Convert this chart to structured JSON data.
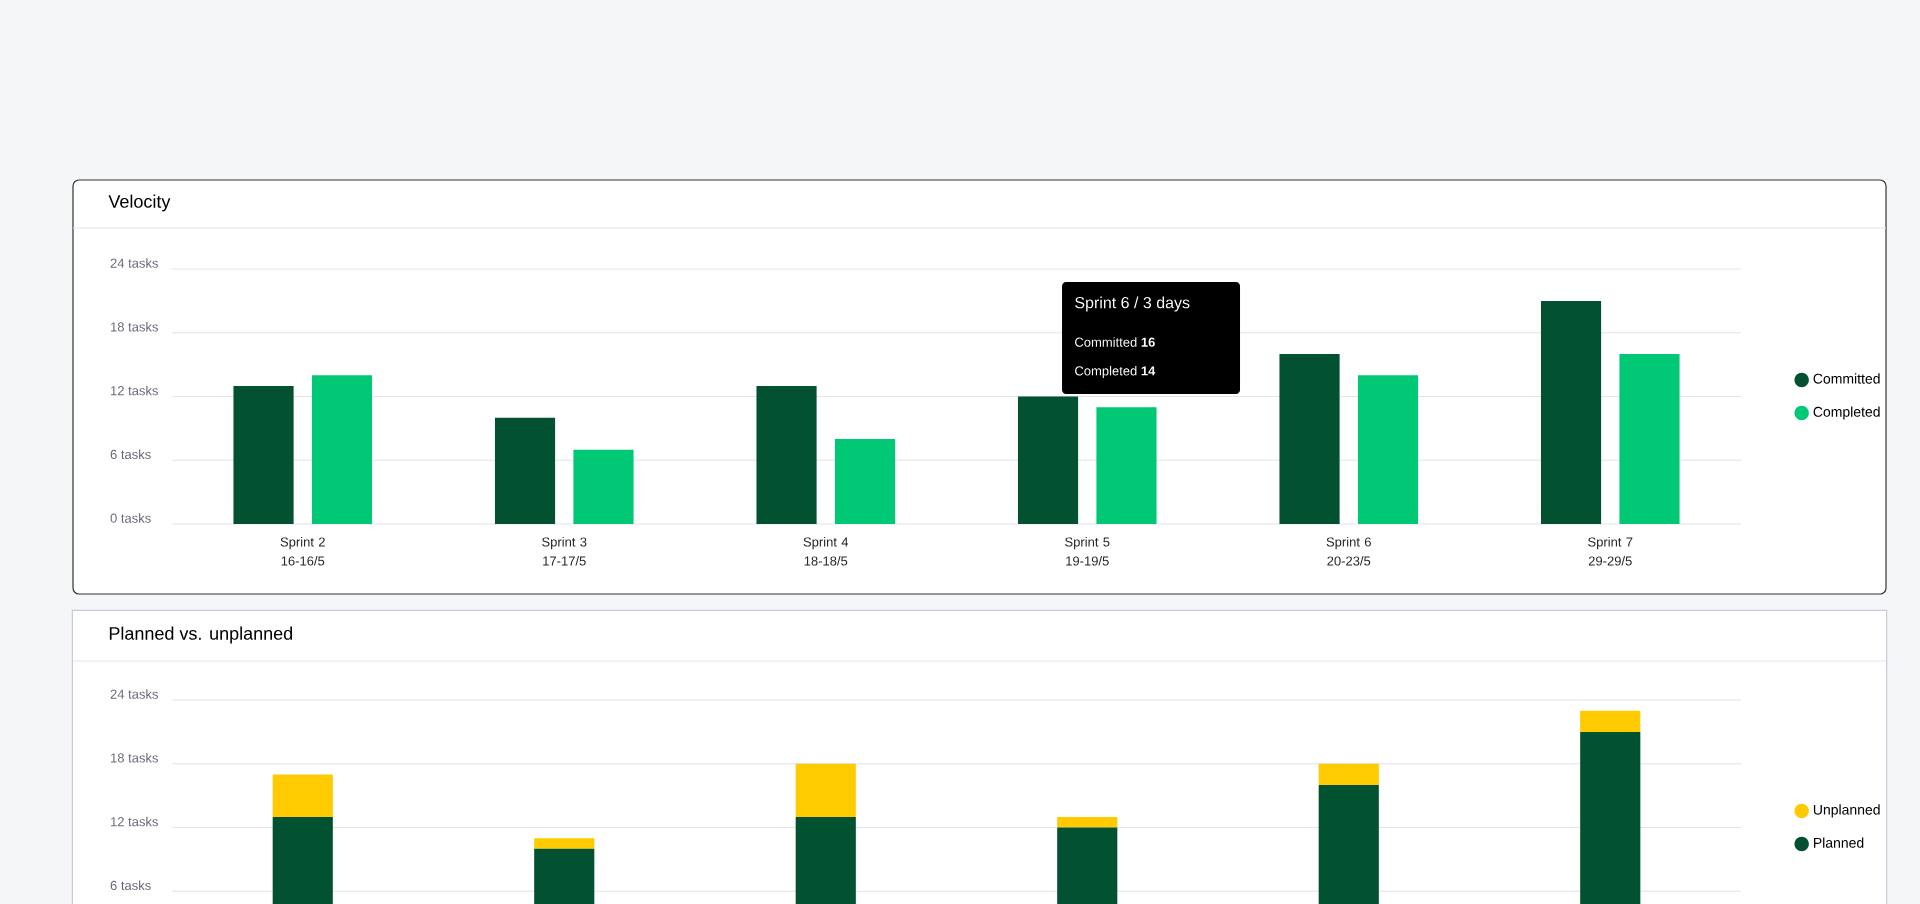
{
  "chart_data": [
    {
      "type": "bar",
      "title": "Velocity",
      "categories": [
        "Sprint 2 16-16/5",
        "Sprint 3 17-17/5",
        "Sprint 4 18-18/5",
        "Sprint 5 19-19/5",
        "Sprint 6 20-23/5",
        "Sprint 7 29-29/5"
      ],
      "series": [
        {
          "name": "Committed",
          "color": "#025231",
          "values": [
            13,
            10,
            13,
            12,
            16,
            21
          ]
        },
        {
          "name": "Completed",
          "color": "#00c875",
          "values": [
            14,
            7,
            8,
            11,
            14,
            16
          ]
        }
      ],
      "ylim": [
        0,
        24
      ],
      "yticks": [
        {
          "value": 0,
          "label": "0 tasks"
        },
        {
          "value": 6,
          "label": "6 tasks"
        },
        {
          "value": 12,
          "label": "12 tasks"
        },
        {
          "value": 18,
          "label": "18 tasks"
        },
        {
          "value": 24,
          "label": "24 tasks"
        }
      ],
      "grid": "y",
      "legend": "right",
      "annotations": [
        "Sprint 6 / 3 days",
        "Committed **16**",
        "Completed **14**"
      ]
    },
    {
      "type": "bar",
      "title": "Planned vs. unplanned",
      "stacked": true,
      "categories": [
        null,
        null,
        null,
        null,
        null,
        null
      ],
      "series": [
        {
          "name": "Planned",
          "color": "#025231",
          "values": [
            13,
            10,
            13,
            12,
            16,
            21
          ]
        },
        {
          "name": "Unplanned",
          "color": "#ffcb00",
          "values": [
            4,
            1,
            5,
            1,
            2,
            2
          ]
        }
      ],
      "ylim": [
        0,
        24
      ],
      "yticks": [
        {
          "value": 6,
          "label": "6 tasks"
        },
        {
          "value": 12,
          "label": "12 tasks"
        },
        {
          "value": 18,
          "label": "18 tasks"
        },
        {
          "value": 24,
          "label": "24 tasks"
        }
      ],
      "grid": "y",
      "legend": "right",
      "tick_labels": "y"
    }
  ]
}
